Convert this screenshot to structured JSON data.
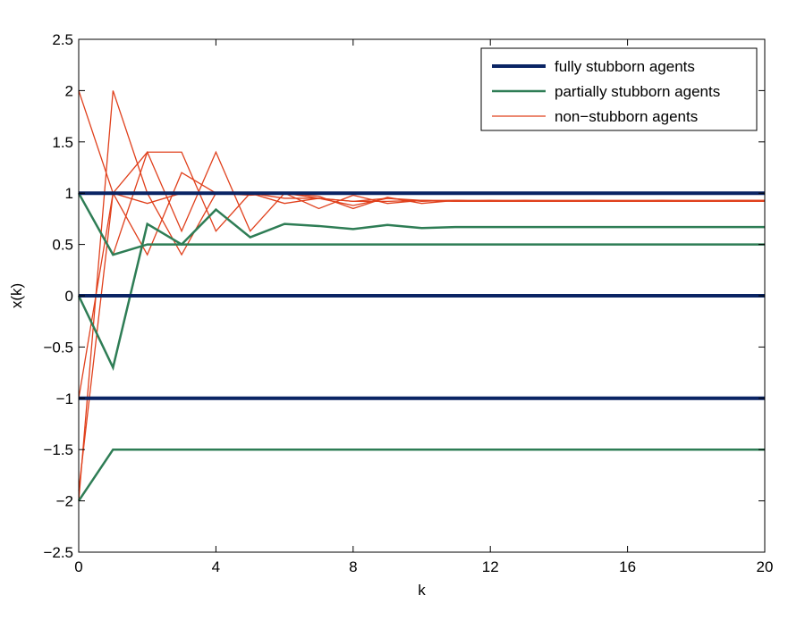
{
  "chart_data": {
    "type": "line",
    "xlabel": "k",
    "ylabel": "x(k)",
    "xlim": [
      0,
      20
    ],
    "ylim": [
      -2.5,
      2.5
    ],
    "xticks": [
      "0",
      "4",
      "8",
      "12",
      "16",
      "20"
    ],
    "xtick_values": [
      0,
      4,
      8,
      12,
      16,
      20
    ],
    "yticks": [
      "−2.5",
      "−2",
      "−1.5",
      "−1",
      "−0.5",
      "0",
      "0.5",
      "1",
      "1.5",
      "2",
      "2.5"
    ],
    "ytick_values": [
      -2.5,
      -2,
      -1.5,
      -1,
      -0.5,
      0,
      0.5,
      1,
      1.5,
      2,
      2.5
    ],
    "grid": false,
    "legend_position": "top-right",
    "colors": {
      "fully": "#0a2464",
      "partially": "#2e7d55",
      "non": "#e0401c"
    },
    "legend": [
      {
        "label": "fully stubborn agents",
        "group": "fully"
      },
      {
        "label": "partially stubborn agents",
        "group": "partially"
      },
      {
        "label": "non−stubborn agents",
        "group": "non"
      }
    ],
    "series": [
      {
        "group": "fully",
        "x": [
          0,
          20
        ],
        "y": [
          1,
          1
        ]
      },
      {
        "group": "fully",
        "x": [
          0,
          20
        ],
        "y": [
          0,
          0
        ]
      },
      {
        "group": "fully",
        "x": [
          0,
          20
        ],
        "y": [
          -1,
          -1
        ]
      },
      {
        "group": "partially",
        "x": [
          0,
          1,
          2,
          3,
          4,
          5,
          6,
          7,
          8,
          9,
          10,
          11,
          12,
          13,
          14,
          15,
          16,
          17,
          18,
          19,
          20
        ],
        "y": [
          1,
          0.4,
          0.5,
          0.5,
          0.5,
          0.5,
          0.5,
          0.5,
          0.5,
          0.5,
          0.5,
          0.5,
          0.5,
          0.5,
          0.5,
          0.5,
          0.5,
          0.5,
          0.5,
          0.5,
          0.5
        ]
      },
      {
        "group": "partially",
        "x": [
          0,
          1,
          2,
          3,
          4,
          5,
          6,
          7,
          8,
          9,
          10,
          11,
          12,
          13,
          14,
          15,
          16,
          17,
          18,
          19,
          20
        ],
        "y": [
          0,
          -0.7,
          0.7,
          0.5,
          0.84,
          0.57,
          0.7,
          0.68,
          0.65,
          0.69,
          0.66,
          0.67,
          0.67,
          0.67,
          0.67,
          0.67,
          0.67,
          0.67,
          0.67,
          0.67,
          0.67
        ]
      },
      {
        "group": "partially",
        "x": [
          0,
          1,
          2,
          3,
          4,
          5,
          6,
          7,
          8,
          9,
          10,
          11,
          12,
          13,
          14,
          15,
          16,
          17,
          18,
          19,
          20
        ],
        "y": [
          -2,
          -1.5,
          -1.5,
          -1.5,
          -1.5,
          -1.5,
          -1.5,
          -1.5,
          -1.5,
          -1.5,
          -1.5,
          -1.5,
          -1.5,
          -1.5,
          -1.5,
          -1.5,
          -1.5,
          -1.5,
          -1.5,
          -1.5,
          -1.5
        ]
      },
      {
        "group": "non",
        "x": [
          0,
          1,
          2,
          3,
          4,
          5,
          6,
          7,
          8,
          9,
          10,
          11,
          12,
          13,
          14,
          15,
          16,
          17,
          18,
          19,
          20
        ],
        "y": [
          2,
          1,
          0.4,
          1.2,
          1,
          1,
          0.95,
          0.95,
          0.92,
          0.95,
          0.93,
          0.93,
          0.93,
          0.93,
          0.93,
          0.93,
          0.93,
          0.93,
          0.93,
          0.93,
          0.93
        ]
      },
      {
        "group": "non",
        "x": [
          0,
          1,
          2,
          3,
          4,
          5,
          6,
          7,
          8,
          9,
          10,
          11,
          12,
          13,
          14,
          15,
          16,
          17,
          18,
          19,
          20
        ],
        "y": [
          -2,
          2,
          1,
          0.4,
          1,
          0.98,
          1,
          0.95,
          0.88,
          0.95,
          0.92,
          0.93,
          0.92,
          0.93,
          0.92,
          0.93,
          0.92,
          0.93,
          0.92,
          0.93,
          0.93
        ]
      },
      {
        "group": "non",
        "x": [
          0,
          1,
          2,
          3,
          4,
          5,
          6,
          7,
          8,
          9,
          10,
          11,
          12,
          13,
          14,
          15,
          16,
          17,
          18,
          19,
          20
        ],
        "y": [
          -1,
          1,
          1.4,
          0.63,
          1.4,
          0.63,
          1,
          0.97,
          0.85,
          0.96,
          0.9,
          0.93,
          0.92,
          0.92,
          0.92,
          0.92,
          0.92,
          0.92,
          0.92,
          0.92,
          0.92
        ]
      },
      {
        "group": "non",
        "x": [
          0,
          1,
          2,
          3,
          4,
          5,
          6,
          7,
          8,
          9,
          10,
          11,
          12,
          13,
          14,
          15,
          16,
          17,
          18,
          19,
          20
        ],
        "y": [
          1,
          0.4,
          1.4,
          1.4,
          0.63,
          1,
          1,
          0.85,
          0.98,
          0.9,
          0.93,
          0.92,
          0.93,
          0.92,
          0.92,
          0.92,
          0.92,
          0.92,
          0.92,
          0.92,
          0.92
        ]
      },
      {
        "group": "non",
        "x": [
          0,
          1,
          2,
          3,
          4,
          5,
          6,
          7,
          8,
          9,
          10,
          11,
          12,
          13,
          14,
          15,
          16,
          17,
          18,
          19,
          20
        ],
        "y": [
          -1.9,
          1,
          0.9,
          1,
          1,
          1,
          0.9,
          0.95,
          0.92,
          0.92,
          0.93,
          0.92,
          0.92,
          0.92,
          0.92,
          0.92,
          0.92,
          0.92,
          0.92,
          0.92,
          0.92
        ]
      }
    ]
  }
}
